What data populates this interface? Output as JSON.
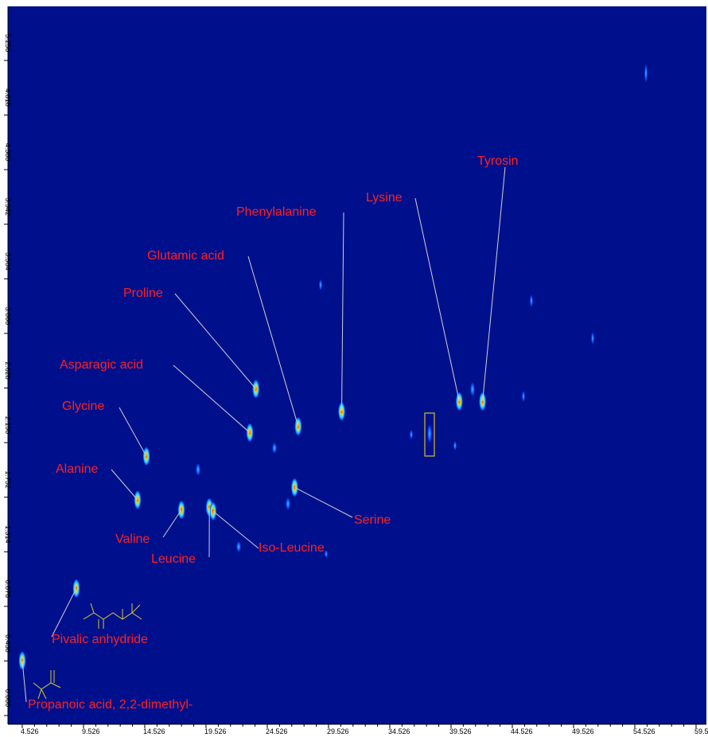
{
  "chart_data": {
    "type": "scatter",
    "point_labels": [
      "Propanoic acid, 2,2-dimethyl-",
      "Pivalic anhydride",
      "Alanine",
      "Glycine",
      "Valine",
      "Leucine",
      "Iso-Leucine",
      "Serine",
      "Asparagic acid",
      "Proline",
      "Glutamic acid",
      "Phenylalanine",
      "Lysine",
      "Tyrosin"
    ],
    "x": [
      4.53,
      8.94,
      13.94,
      14.66,
      17.52,
      19.8,
      20.1,
      26.76,
      23.1,
      23.6,
      27.05,
      30.6,
      40.2,
      42.1
    ],
    "values": [
      0.44,
      1.02,
      1.73,
      2.08,
      1.65,
      1.67,
      1.64,
      1.83,
      2.27,
      2.62,
      2.32,
      2.44,
      2.52,
      2.52
    ],
    "xlim": [
      3.36,
      60.37
    ],
    "ylim": [
      -0.07,
      5.69
    ],
    "xticks": [
      4.526,
      9.526,
      14.526,
      19.526,
      24.526,
      29.526,
      34.526,
      39.526,
      44.526,
      49.526,
      54.526,
      {
        "value": 59.526,
        "label": "59.5"
      }
    ],
    "yticks": [
      {
        "value": 0,
        "label": "0.000"
      },
      0.438,
      0.876,
      1.314,
      1.752,
      {
        "value": 2.19,
        "label": "2.190"
      },
      2.628,
      3.066,
      3.504,
      3.942,
      {
        "value": 4.38,
        "label": "4.380"
      },
      4.818,
      5.256
    ],
    "background": "#00108c",
    "label_color": "#ff2020"
  }
}
